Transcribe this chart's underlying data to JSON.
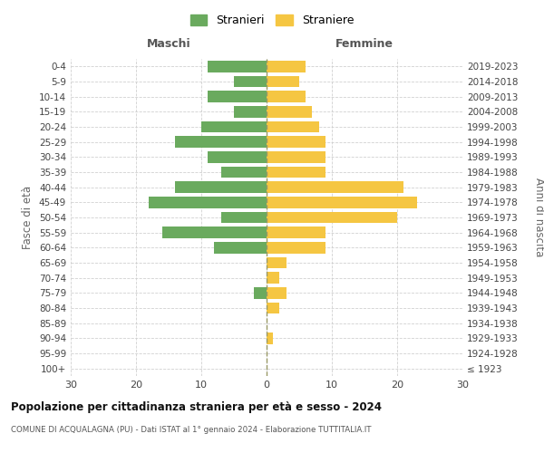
{
  "age_groups": [
    "100+",
    "95-99",
    "90-94",
    "85-89",
    "80-84",
    "75-79",
    "70-74",
    "65-69",
    "60-64",
    "55-59",
    "50-54",
    "45-49",
    "40-44",
    "35-39",
    "30-34",
    "25-29",
    "20-24",
    "15-19",
    "10-14",
    "5-9",
    "0-4"
  ],
  "birth_years": [
    "≤ 1923",
    "1924-1928",
    "1929-1933",
    "1934-1938",
    "1939-1943",
    "1944-1948",
    "1949-1953",
    "1954-1958",
    "1959-1963",
    "1964-1968",
    "1969-1973",
    "1974-1978",
    "1979-1983",
    "1984-1988",
    "1989-1993",
    "1994-1998",
    "1999-2003",
    "2004-2008",
    "2009-2013",
    "2014-2018",
    "2019-2023"
  ],
  "males": [
    0,
    0,
    0,
    0,
    0,
    2,
    0,
    0,
    8,
    16,
    7,
    18,
    14,
    7,
    9,
    14,
    10,
    5,
    9,
    5,
    9
  ],
  "females": [
    0,
    0,
    1,
    0,
    2,
    3,
    2,
    3,
    9,
    9,
    20,
    23,
    21,
    9,
    9,
    9,
    8,
    7,
    6,
    5,
    6
  ],
  "male_color": "#6aaa5e",
  "female_color": "#f5c642",
  "background_color": "#ffffff",
  "grid_color": "#cccccc",
  "title": "Popolazione per cittadinanza straniera per età e sesso - 2024",
  "subtitle": "COMUNE DI ACQUALAGNA (PU) - Dati ISTAT al 1° gennaio 2024 - Elaborazione TUTTITALIA.IT",
  "xlabel_left": "Maschi",
  "xlabel_right": "Femmine",
  "ylabel_left": "Fasce di età",
  "ylabel_right": "Anni di nascita",
  "legend_male": "Stranieri",
  "legend_female": "Straniere",
  "xlim": 30
}
